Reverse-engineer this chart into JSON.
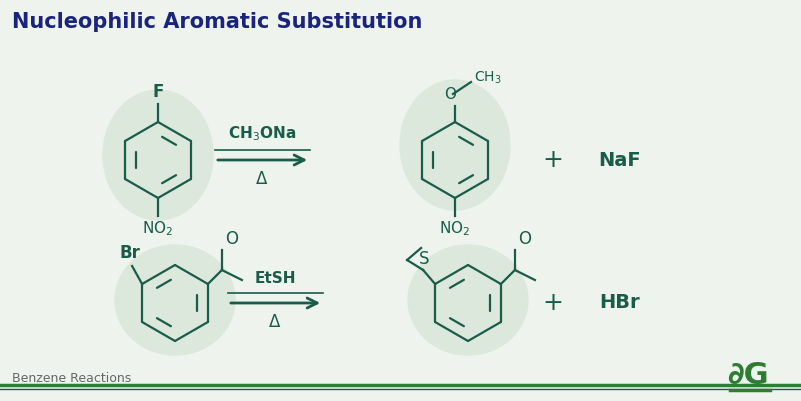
{
  "title": "Nucleophilic Aromatic Substitution",
  "title_color": "#1a237e",
  "title_fontsize": 15,
  "bg_color": "#eef3ee",
  "structure_color": "#1a5c4a",
  "footer_text": "Benzene Reactions",
  "bar_color1": "#2e7d32",
  "bar_color2": "#1a5c4a",
  "reaction1_reagent": "CH$_3$ONa",
  "reaction1_condition": "Δ",
  "reaction1_byproduct": "NaF",
  "reaction2_reagent": "EtSH",
  "reaction2_condition": "Δ",
  "reaction2_byproduct": "HBr",
  "logo_color": "#2e7d32",
  "panel1_bg": "#dce8dc",
  "panel2_bg": "#dce8dc"
}
